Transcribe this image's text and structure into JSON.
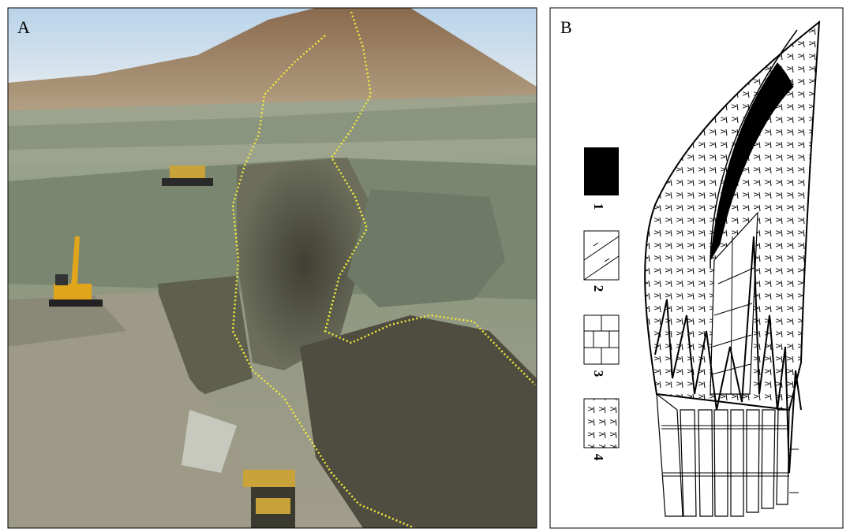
{
  "panels": [
    {
      "label": "A"
    },
    {
      "label": "B",
      "legend": [
        "1",
        "2",
        "3",
        "4"
      ]
    }
  ]
}
